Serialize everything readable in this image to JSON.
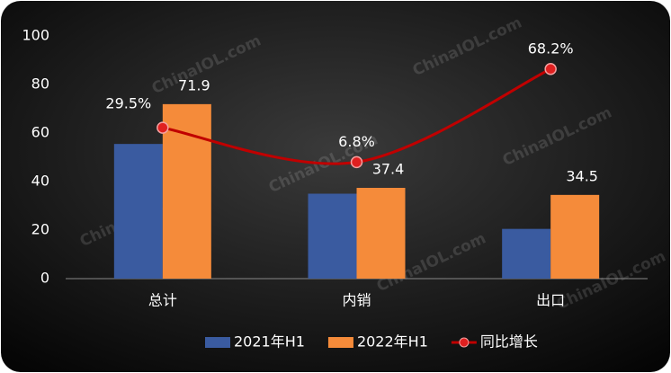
{
  "chart_data": {
    "type": "bar_line",
    "categories": [
      "总计",
      "内销",
      "出口"
    ],
    "series": [
      {
        "name": "2021年H1",
        "color": "#3a5ba0",
        "values": [
          55.5,
          35.0,
          20.5
        ]
      },
      {
        "name": "2022年H1",
        "color": "#f58b3a",
        "values": [
          71.9,
          37.4,
          34.5
        ],
        "value_labels": [
          "71.9",
          "37.4",
          "34.5"
        ]
      },
      {
        "name": "同比增长",
        "type": "line",
        "axis": "y2",
        "color": "#c00000",
        "values": [
          29.5,
          6.8,
          68.2
        ],
        "value_labels": [
          "29.5%",
          "6.8%",
          "68.2%"
        ]
      }
    ],
    "ylim": [
      0,
      100
    ],
    "yticks": [
      0,
      20,
      40,
      60,
      80,
      100
    ],
    "y2lim": [
      -70,
      90
    ],
    "legend": "bottom",
    "watermark": "ChinaIOL.com"
  }
}
